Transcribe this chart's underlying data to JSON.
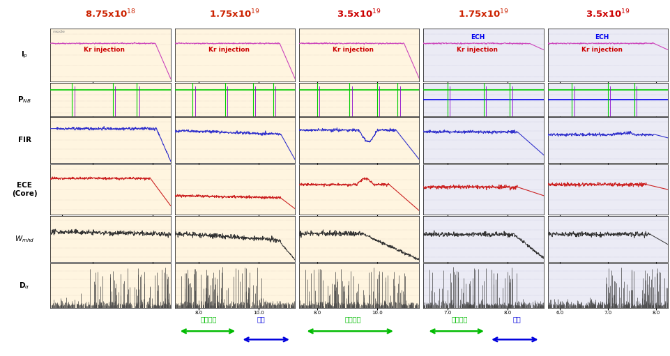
{
  "title_values": [
    "8.75x10$^{18}$",
    "1.75x10$^{19}$",
    "3.5x10$^{19}$",
    "1.75x10$^{19}$",
    "3.5x10$^{19}$"
  ],
  "title_colors_normal": "#cc2200",
  "title_colors_bold": "#cc0000",
  "title_bold_idx": [
    2,
    4
  ],
  "title_bg": "#ffbbbb",
  "label_left": [
    "I$_p$",
    "P$_{NB}$",
    "FIR",
    "ECE\n(Core)",
    "$W_{mhd}$",
    "D$_\\alpha$"
  ],
  "label_bg": "#ffd700",
  "panel_bg_warm": "#fff5e0",
  "panel_bg_cool": "#ebebf5",
  "injection_color": "#cc0000",
  "ech_color": "#0000ee",
  "ip_color": "#cc44bb",
  "fir_color": "#3333cc",
  "ece_color": "#cc2222",
  "wmhd_color": "#333333",
  "dalpha_color": "#444444",
  "green_nb": "#00cc00",
  "green_arrow_color": "#00bb00",
  "blue_arrow_color": "#0000dd"
}
